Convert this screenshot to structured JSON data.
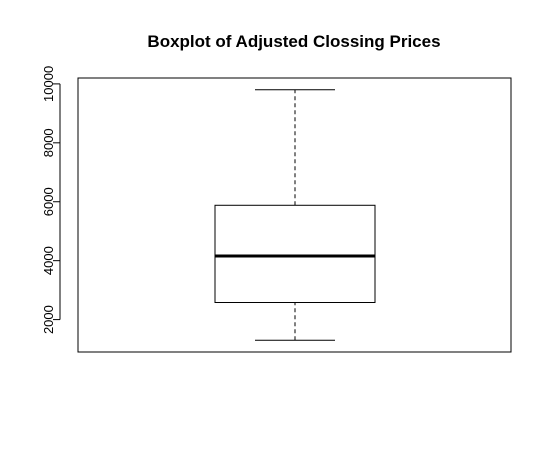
{
  "chart_data": {
    "type": "boxplot",
    "title": "Boxplot of Adjusted Clossing Prices",
    "xlabel": "",
    "ylabel": "",
    "ylim": [
      900,
      10200
    ],
    "yticks": [
      2000,
      4000,
      6000,
      8000,
      10000
    ],
    "ytick_labels": [
      "2000",
      "4000",
      "6000",
      "8000",
      "10000"
    ],
    "grid": false,
    "box": {
      "min": 1300,
      "q1": 2580,
      "median": 4160,
      "q3": 5880,
      "max": 9800
    },
    "colors": {
      "line": "#000000",
      "background": "#ffffff"
    }
  }
}
